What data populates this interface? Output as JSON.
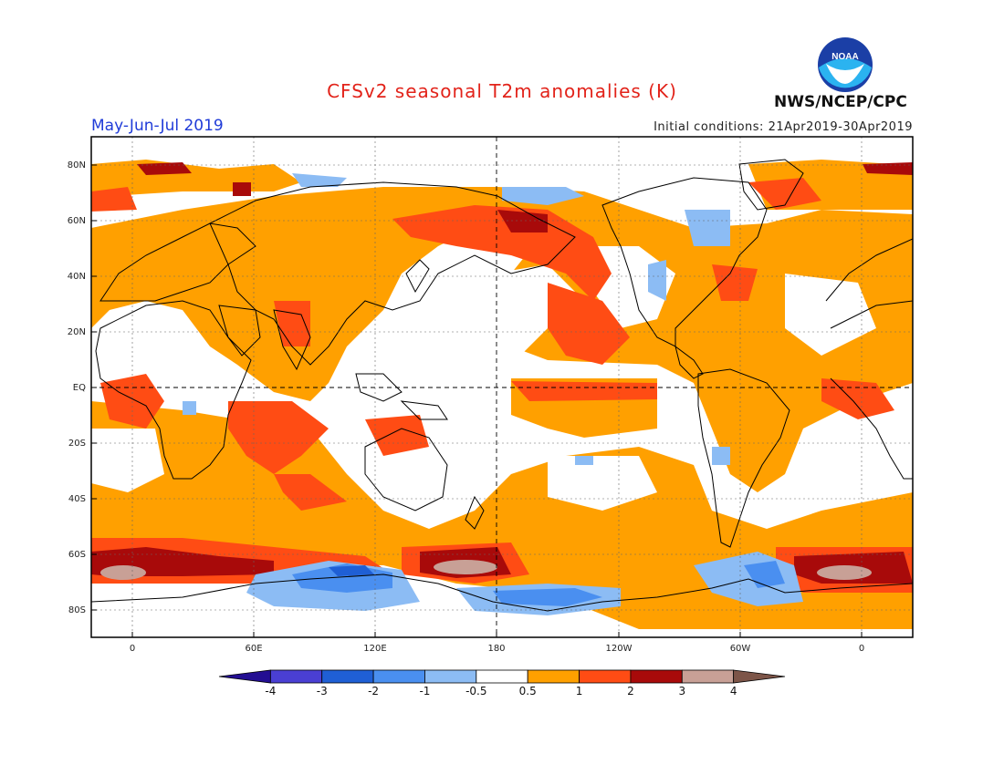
{
  "header": {
    "title": "CFSv2 seasonal T2m anomalies (K)",
    "period": "May-Jun-Jul 2019",
    "initial_conditions": "Initial conditions: 21Apr2019-30Apr2019",
    "agency": "NWS/NCEP/CPC",
    "logo_text": "NOAA"
  },
  "colors": {
    "title": "#e2231a",
    "period": "#1f3bd8"
  },
  "map": {
    "lat_labels": [
      "80N",
      "60N",
      "40N",
      "20N",
      "EQ",
      "20S",
      "40S",
      "60S",
      "80S"
    ],
    "lon_labels": [
      "0",
      "60E",
      "120E",
      "180",
      "120W",
      "60W",
      "0"
    ]
  },
  "colorbar": {
    "tick_labels": [
      "-4",
      "-3",
      "-2",
      "-1",
      "-0.5",
      "0.5",
      "1",
      "2",
      "3",
      "4"
    ],
    "colors": [
      "#230e92",
      "#4a3fd3",
      "#1f5fd5",
      "#4a8ff0",
      "#8cbcf4",
      "#ffffff",
      "#ffa000",
      "#ff4c14",
      "#a80a0a",
      "#c8a096",
      "#7d5548"
    ]
  }
}
